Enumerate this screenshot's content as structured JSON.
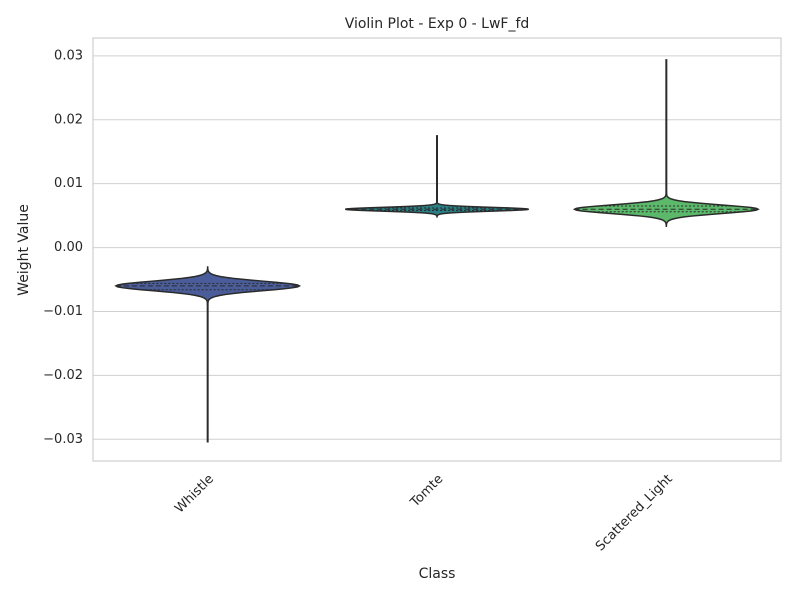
{
  "chart_data": {
    "type": "violin",
    "title": "Violin Plot - Exp 0 - LwF_fd",
    "x_label": "Class",
    "y_label": "Weight Value",
    "categories": [
      "Whistle",
      "Tomte",
      "Scattered_Light"
    ],
    "series": [
      {
        "name": "Whistle",
        "color": "#4a5d9a",
        "min": -0.0305,
        "q1": -0.0066,
        "median": -0.006,
        "q3": -0.0056,
        "max": -0.0051
      },
      {
        "name": "Tomte",
        "color": "#2a7f85",
        "min": 0.0057,
        "q1": 0.0058,
        "median": 0.006,
        "q3": 0.0062,
        "max": 0.0176
      },
      {
        "name": "Scattered_Light",
        "color": "#5cb86a",
        "min": 0.0051,
        "q1": 0.0056,
        "median": 0.006,
        "q3": 0.0065,
        "max": 0.0295
      }
    ],
    "ylim": [
      -0.0334,
      0.0328
    ],
    "yticks": [
      {
        "value": -0.03,
        "label": "−0.03"
      },
      {
        "value": -0.02,
        "label": "−0.02"
      },
      {
        "value": -0.01,
        "label": "−0.01"
      },
      {
        "value": 0,
        "label": "0.00"
      },
      0.01,
      0.02,
      0.03
    ],
    "grid": true
  }
}
